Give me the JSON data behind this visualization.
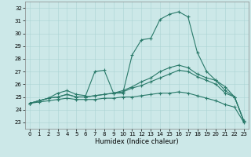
{
  "xlabel": "Humidex (Indice chaleur)",
  "xlim": [
    -0.5,
    23.5
  ],
  "ylim": [
    22.5,
    32.5
  ],
  "yticks": [
    23,
    24,
    25,
    26,
    27,
    28,
    29,
    30,
    31,
    32
  ],
  "xticks": [
    0,
    1,
    2,
    3,
    4,
    5,
    6,
    7,
    8,
    9,
    10,
    11,
    12,
    13,
    14,
    15,
    16,
    17,
    18,
    19,
    20,
    21,
    22,
    23
  ],
  "bg_color": "#cce8e8",
  "line_color": "#2a7a6a",
  "max_y": [
    24.5,
    24.7,
    24.9,
    25.3,
    25.5,
    25.2,
    25.1,
    27.0,
    27.1,
    25.3,
    25.3,
    28.3,
    29.5,
    29.6,
    31.1,
    31.5,
    31.7,
    31.3,
    28.5,
    27.0,
    26.3,
    25.8,
    25.0,
    23.1
  ],
  "mid2_y": [
    24.5,
    24.7,
    24.9,
    25.0,
    25.2,
    25.0,
    25.0,
    25.1,
    25.2,
    25.3,
    25.5,
    25.8,
    26.2,
    26.5,
    27.0,
    27.3,
    27.5,
    27.3,
    26.8,
    26.5,
    26.3,
    25.5,
    25.0,
    23.1
  ],
  "mid1_y": [
    24.5,
    24.7,
    24.9,
    25.0,
    25.2,
    25.0,
    25.0,
    25.1,
    25.2,
    25.3,
    25.4,
    25.7,
    25.9,
    26.2,
    26.5,
    26.8,
    27.1,
    27.0,
    26.6,
    26.3,
    26.0,
    25.3,
    25.0,
    23.1
  ],
  "min_y": [
    24.5,
    24.6,
    24.7,
    24.8,
    24.9,
    24.8,
    24.8,
    24.8,
    24.9,
    24.9,
    25.0,
    25.0,
    25.1,
    25.2,
    25.3,
    25.3,
    25.4,
    25.3,
    25.1,
    24.9,
    24.7,
    24.4,
    24.2,
    23.0
  ]
}
